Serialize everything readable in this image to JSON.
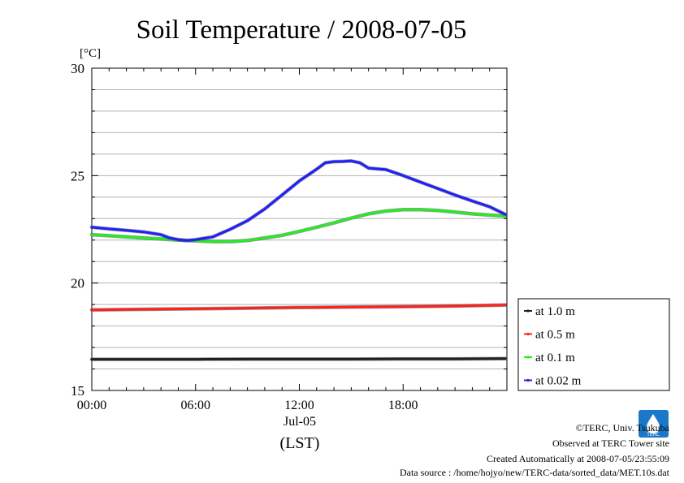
{
  "chart_data": {
    "type": "line",
    "title": "Soil Temperature / 2008-07-05",
    "ylabel": "[°C]",
    "xlabel": "(LST)",
    "x_date_label": "Jul-05",
    "x_range": [
      0,
      24
    ],
    "ylim": [
      15,
      30
    ],
    "x_ticks": [
      {
        "value": 0,
        "label": "00:00"
      },
      {
        "value": 6,
        "label": "06:00"
      },
      {
        "value": 12,
        "label": "12:00"
      },
      {
        "value": 18,
        "label": "18:00"
      }
    ],
    "y_ticks": [
      {
        "value": 15,
        "label": "15"
      },
      {
        "value": 20,
        "label": "20"
      },
      {
        "value": 25,
        "label": "25"
      },
      {
        "value": 30,
        "label": "30"
      }
    ],
    "grid": true,
    "legend_position": "right",
    "series": [
      {
        "name": "at 1.0 m",
        "color": "#202020",
        "points": [
          [
            0,
            16.45
          ],
          [
            3,
            16.45
          ],
          [
            6,
            16.45
          ],
          [
            9,
            16.46
          ],
          [
            12,
            16.46
          ],
          [
            15,
            16.46
          ],
          [
            18,
            16.47
          ],
          [
            21,
            16.47
          ],
          [
            23.9,
            16.48
          ]
        ]
      },
      {
        "name": "at 0.5 m",
        "color": "#ff2020",
        "points": [
          [
            0,
            18.75
          ],
          [
            3,
            18.78
          ],
          [
            6,
            18.8
          ],
          [
            9,
            18.83
          ],
          [
            12,
            18.86
          ],
          [
            15,
            18.88
          ],
          [
            18,
            18.9
          ],
          [
            21,
            18.93
          ],
          [
            23.9,
            18.98
          ]
        ]
      },
      {
        "name": "at 0.1 m",
        "color": "#22ee22",
        "points": [
          [
            0,
            22.25
          ],
          [
            1,
            22.2
          ],
          [
            2,
            22.15
          ],
          [
            3,
            22.1
          ],
          [
            4,
            22.05
          ],
          [
            5,
            22.0
          ],
          [
            6,
            21.96
          ],
          [
            7,
            21.93
          ],
          [
            8,
            21.93
          ],
          [
            9,
            21.98
          ],
          [
            10,
            22.1
          ],
          [
            11,
            22.22
          ],
          [
            12,
            22.4
          ],
          [
            13,
            22.6
          ],
          [
            14,
            22.8
          ],
          [
            15,
            23.02
          ],
          [
            16,
            23.22
          ],
          [
            17,
            23.35
          ],
          [
            18,
            23.42
          ],
          [
            19,
            23.42
          ],
          [
            20,
            23.38
          ],
          [
            21,
            23.3
          ],
          [
            22,
            23.22
          ],
          [
            23,
            23.16
          ],
          [
            23.9,
            23.12
          ]
        ]
      },
      {
        "name": "at 0.02 m",
        "color": "#2020ff",
        "points": [
          [
            0,
            22.6
          ],
          [
            1,
            22.52
          ],
          [
            2,
            22.45
          ],
          [
            3,
            22.38
          ],
          [
            4,
            22.25
          ],
          [
            4.5,
            22.1
          ],
          [
            5,
            22.02
          ],
          [
            5.5,
            21.98
          ],
          [
            6,
            22.02
          ],
          [
            7,
            22.15
          ],
          [
            8,
            22.5
          ],
          [
            9,
            22.9
          ],
          [
            10,
            23.45
          ],
          [
            11,
            24.1
          ],
          [
            12,
            24.75
          ],
          [
            13,
            25.3
          ],
          [
            13.5,
            25.6
          ],
          [
            14,
            25.65
          ],
          [
            14.5,
            25.66
          ],
          [
            15,
            25.68
          ],
          [
            15.5,
            25.6
          ],
          [
            16,
            25.35
          ],
          [
            17,
            25.28
          ],
          [
            18,
            25.0
          ],
          [
            19,
            24.7
          ],
          [
            20,
            24.4
          ],
          [
            21,
            24.1
          ],
          [
            22,
            23.82
          ],
          [
            23,
            23.55
          ],
          [
            23.9,
            23.2
          ]
        ]
      }
    ]
  },
  "footer": {
    "copyright": "©TERC, Univ. Tsukuba",
    "observed": "Observed at TERC Tower site",
    "created": "Created Automatically at 2008-07-05/23:55:09",
    "source": "Data source : /home/hojyo/new/TERC-data/sorted_data/MET.10s.dat",
    "logo_text": "TERC"
  }
}
